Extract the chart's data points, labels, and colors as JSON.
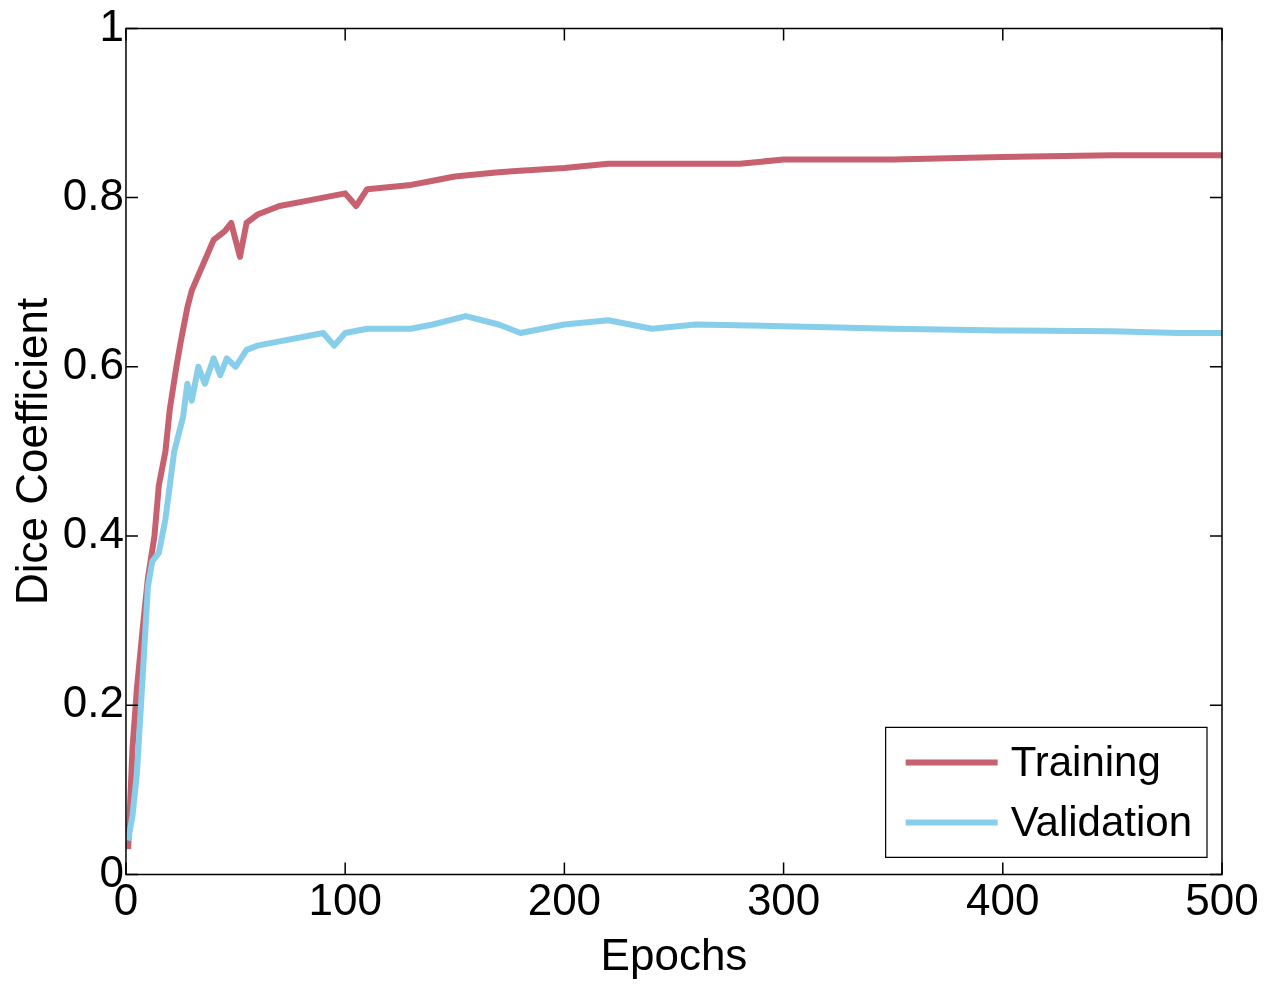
{
  "chart_data": {
    "type": "line",
    "xlabel": "Epochs",
    "ylabel": "Dice Coefficient",
    "xlim": [
      0,
      500
    ],
    "xticks": [
      0,
      100,
      200,
      300,
      400,
      500
    ],
    "ylim": [
      0,
      1
    ],
    "yticks": [
      0,
      {
        "value": 0.2,
        "label": "0.2"
      },
      {
        "value": 0.4,
        "label": "0.4"
      },
      {
        "value": 0.6,
        "label": "0.6"
      },
      {
        "value": 0.8,
        "label": "0.8"
      },
      1
    ],
    "legend": "bottom right",
    "grid": false,
    "marker": "none",
    "line_style": "solid",
    "series": [
      {
        "name": "Training",
        "color": "#c8616f",
        "x": [
          1,
          3,
          5,
          8,
          10,
          13,
          15,
          18,
          20,
          23,
          25,
          28,
          30,
          35,
          40,
          45,
          48,
          50,
          52,
          55,
          60,
          70,
          80,
          90,
          100,
          105,
          110,
          130,
          140,
          150,
          170,
          200,
          220,
          250,
          280,
          300,
          350,
          400,
          450,
          500
        ],
        "values": [
          0.03,
          0.15,
          0.22,
          0.3,
          0.35,
          0.4,
          0.46,
          0.5,
          0.55,
          0.6,
          0.63,
          0.67,
          0.69,
          0.72,
          0.75,
          0.76,
          0.77,
          0.75,
          0.73,
          0.77,
          0.78,
          0.79,
          0.795,
          0.8,
          0.805,
          0.79,
          0.81,
          0.815,
          0.82,
          0.825,
          0.83,
          0.835,
          0.84,
          0.84,
          0.84,
          0.845,
          0.845,
          0.848,
          0.85,
          0.85
        ]
      },
      {
        "name": "Validation",
        "color": "#87ceeb",
        "x": [
          1,
          3,
          5,
          8,
          10,
          12,
          15,
          18,
          20,
          22,
          24,
          26,
          28,
          30,
          33,
          36,
          40,
          43,
          46,
          50,
          55,
          60,
          70,
          80,
          90,
          95,
          100,
          110,
          130,
          140,
          155,
          170,
          180,
          200,
          220,
          240,
          260,
          300,
          350,
          400,
          450,
          480,
          500
        ],
        "values": [
          0.04,
          0.07,
          0.12,
          0.25,
          0.34,
          0.37,
          0.38,
          0.42,
          0.46,
          0.5,
          0.52,
          0.54,
          0.58,
          0.56,
          0.6,
          0.58,
          0.61,
          0.59,
          0.61,
          0.6,
          0.62,
          0.625,
          0.63,
          0.635,
          0.64,
          0.625,
          0.64,
          0.645,
          0.645,
          0.65,
          0.66,
          0.65,
          0.64,
          0.65,
          0.655,
          0.645,
          0.65,
          0.648,
          0.645,
          0.643,
          0.642,
          0.64,
          0.64
        ]
      }
    ]
  }
}
